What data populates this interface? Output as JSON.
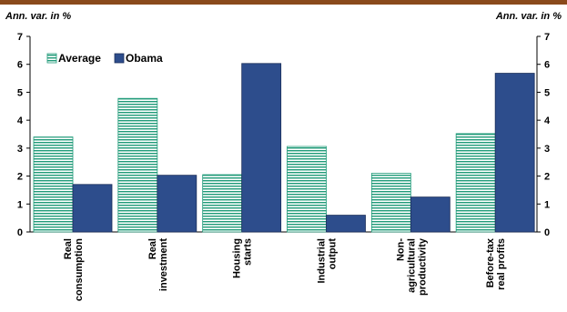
{
  "chart_data": {
    "type": "bar",
    "left_unit_label": "Ann. var. in %",
    "right_unit_label": "Ann. var. in %",
    "ylim": [
      0,
      7
    ],
    "yticks": [
      0,
      1,
      2,
      3,
      4,
      5,
      6,
      7
    ],
    "grid": false,
    "legend_position": "top-left",
    "categories": [
      [
        "Real",
        "consumption"
      ],
      [
        "Real",
        "investment"
      ],
      [
        "Housing",
        "starts"
      ],
      [
        "Industrial",
        "output"
      ],
      [
        "Non-",
        "agricultural",
        "productivity"
      ],
      [
        "Before-tax",
        "real profits"
      ]
    ],
    "series": [
      {
        "name": "Average",
        "color": "#1f9a78",
        "pattern": "horizontal-stripes",
        "values": [
          3.4,
          4.78,
          2.05,
          3.06,
          2.1,
          3.52
        ]
      },
      {
        "name": "Obama",
        "color": "#2d4d8c",
        "pattern": "solid",
        "values": [
          1.7,
          2.03,
          6.03,
          0.6,
          1.25,
          5.68
        ]
      }
    ]
  }
}
